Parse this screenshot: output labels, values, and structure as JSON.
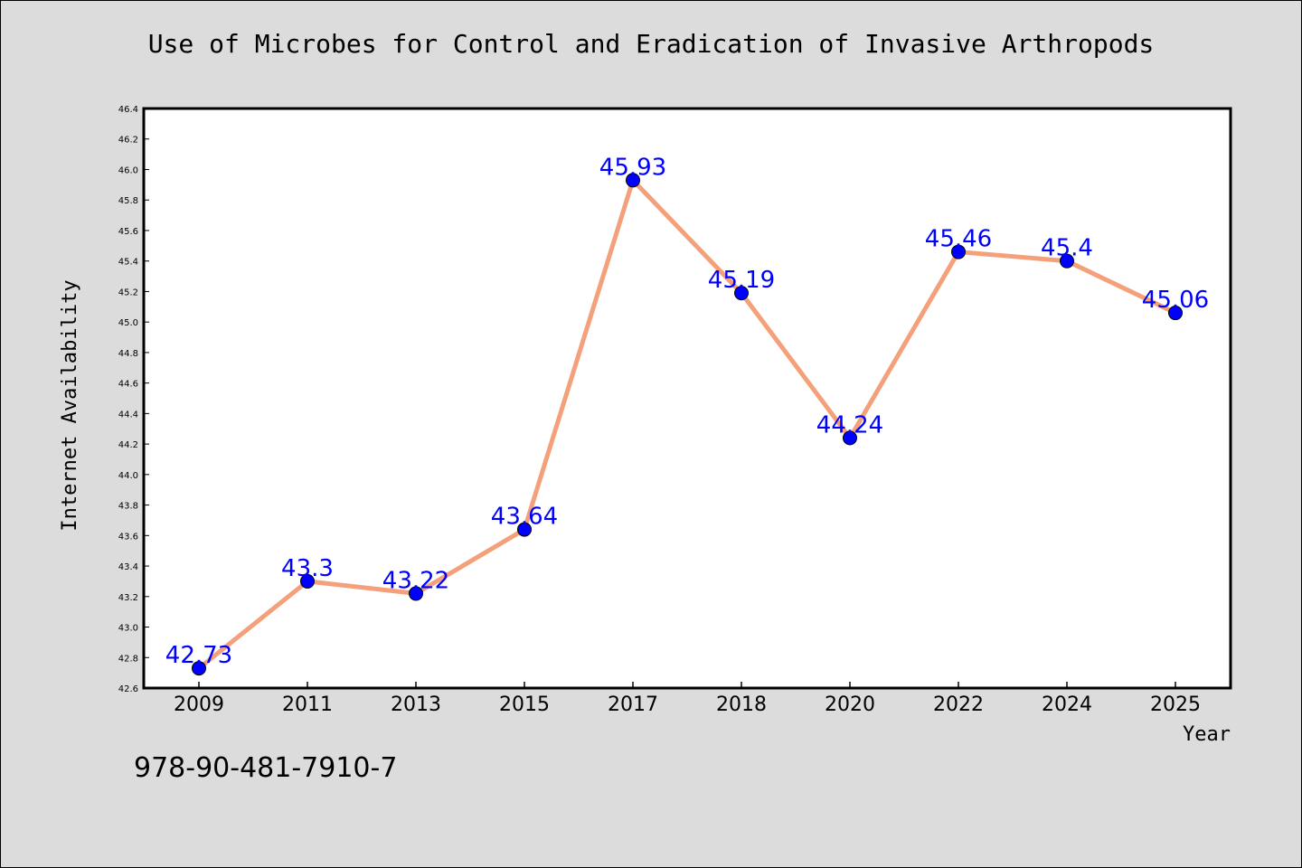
{
  "chart_data": {
    "type": "line",
    "title": "Use of Microbes for Control and Eradication of Invasive Arthropods",
    "xlabel": "Year",
    "ylabel": "Internet Availability",
    "categories": [
      "2009",
      "2011",
      "2013",
      "2015",
      "2017",
      "2018",
      "2020",
      "2022",
      "2024",
      "2025"
    ],
    "series": [
      {
        "values": [
          42.73,
          43.3,
          43.22,
          43.64,
          45.93,
          45.19,
          44.24,
          45.46,
          45.4,
          45.06
        ],
        "labels": [
          "42.73",
          "43.3",
          "43.22",
          "43.64",
          "45.93",
          "45.19",
          "44.24",
          "45.46",
          "45.4",
          "45.06"
        ],
        "line_color": "#f4a07a",
        "marker_color": "#0000ff"
      }
    ],
    "ylim": [
      42.6,
      46.4
    ],
    "yticks": [
      "42.6",
      "42.8",
      "43.0",
      "43.2",
      "43.4",
      "43.6",
      "43.8",
      "44.0",
      "44.2",
      "44.4",
      "44.6",
      "44.8",
      "45.0",
      "45.2",
      "45.4",
      "45.6",
      "45.8",
      "46.0",
      "46.2",
      "46.4"
    ],
    "grid": false,
    "plot_background": "#ffffff",
    "page_background": "#dcdcdc",
    "data_label_color": "#0000ff"
  },
  "footer": {
    "isbn": "978-90-481-7910-7"
  }
}
